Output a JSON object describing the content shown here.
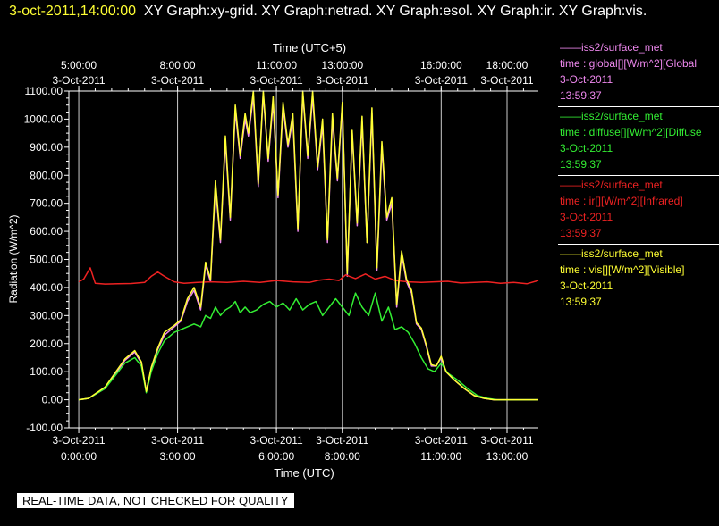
{
  "header": {
    "timestamp": "3-oct-2011,14:00:00",
    "graphs": "XY Graph:xy-grid.  XY Graph:netrad.  XY Graph:esol.  XY Graph:ir.  XY Graph:vis."
  },
  "qc_banner": "REAL-TIME DATA, NOT CHECKED FOR QUALITY",
  "legend": [
    {
      "source": "——iss2/surface_met",
      "variable": "time : global[][W/m^2][Global",
      "date": "3-Oct-2011",
      "time": "13:59:37",
      "color": "#ee88ee"
    },
    {
      "source": "——iss2/surface_met",
      "variable": "time : diffuse[][W/m^2][Diffuse",
      "date": "3-Oct-2011",
      "time": "13:59:37",
      "color": "#33ee33"
    },
    {
      "source": "——iss2/surface_met",
      "variable": "time : ir[][W/m^2][Infrared]",
      "date": "3-Oct-2011",
      "time": "13:59:37",
      "color": "#ee2222"
    },
    {
      "source": "——iss2/surface_met",
      "variable": "time : vis[][W/m^2][Visible]",
      "date": "3-Oct-2011",
      "time": "13:59:37",
      "color": "#ffff33"
    }
  ],
  "chart_data": {
    "type": "line",
    "title": "",
    "xlabel": "Time (UTC)",
    "xlabel_top": "Time (UTC+5)",
    "ylabel": "Radiation (W/m^2)",
    "xlim": [
      -0.3,
      13.95
    ],
    "ylim": [
      -100,
      1100
    ],
    "grid": true,
    "x_unit": "hours since 3-Oct-2011 0:00 UTC",
    "yticks": [
      "-100.00",
      "0.00",
      "100.00",
      "200.00",
      "300.00",
      "400.00",
      "500.00",
      "600.00",
      "700.00",
      "800.00",
      "900.00",
      "1000.00",
      "1100.00"
    ],
    "xticks_bottom": [
      {
        "x": 0,
        "date": "3-Oct-2011",
        "time": "0:00:00"
      },
      {
        "x": 3,
        "date": "3-Oct-2011",
        "time": "3:00:00"
      },
      {
        "x": 6,
        "date": "3-Oct-2011",
        "time": "6:00:00"
      },
      {
        "x": 8,
        "date": "3-Oct-2011",
        "time": "8:00:00"
      },
      {
        "x": 11,
        "date": "3-Oct-2011",
        "time": "11:00:00"
      },
      {
        "x": 13,
        "date": "3-Oct-2011",
        "time": "13:00:00"
      }
    ],
    "xticks_top": [
      {
        "x": 0,
        "time": "5:00:00",
        "date": "3-Oct-2011"
      },
      {
        "x": 3,
        "time": "8:00:00",
        "date": "3-Oct-2011"
      },
      {
        "x": 6,
        "time": "11:00:00",
        "date": "3-Oct-2011"
      },
      {
        "x": 8,
        "time": "13:00:00",
        "date": "3-Oct-2011"
      },
      {
        "x": 11,
        "time": "16:00:00",
        "date": "3-Oct-2011"
      },
      {
        "x": 13,
        "time": "18:00:00",
        "date": "3-Oct-2011"
      }
    ],
    "series": [
      {
        "name": "global",
        "color": "#ee88ee",
        "x": [
          0,
          0.3,
          0.8,
          1.1,
          1.4,
          1.7,
          1.9,
          2.05,
          2.2,
          2.4,
          2.6,
          2.9,
          3.1,
          3.3,
          3.5,
          3.7,
          3.85,
          4.0,
          4.15,
          4.3,
          4.45,
          4.6,
          4.75,
          4.9,
          5.05,
          5.15,
          5.3,
          5.45,
          5.6,
          5.75,
          5.9,
          6.05,
          6.2,
          6.35,
          6.5,
          6.65,
          6.8,
          6.95,
          7.1,
          7.25,
          7.4,
          7.55,
          7.7,
          7.85,
          8.0,
          8.15,
          8.3,
          8.45,
          8.6,
          8.75,
          8.9,
          9.05,
          9.2,
          9.35,
          9.5,
          9.65,
          9.8,
          9.95,
          10.1,
          10.25,
          10.4,
          10.55,
          10.7,
          10.85,
          11.0,
          11.15,
          11.4,
          11.7,
          12.0,
          12.3,
          12.6,
          12.85,
          13.0,
          13.95
        ],
        "y": [
          0,
          5,
          40,
          90,
          140,
          170,
          130,
          30,
          110,
          180,
          230,
          260,
          280,
          350,
          390,
          320,
          480,
          420,
          760,
          560,
          920,
          640,
          1030,
          860,
          1000,
          940,
          1080,
          760,
          1090,
          850,
          1060,
          720,
          1040,
          900,
          1000,
          600,
          1090,
          860,
          1080,
          820,
          980,
          560,
          1000,
          780,
          1050,
          440,
          950,
          620,
          990,
          560,
          1020,
          460,
          900,
          640,
          700,
          330,
          520,
          420,
          380,
          270,
          250,
          190,
          120,
          120,
          150,
          100,
          70,
          40,
          15,
          5,
          0,
          0,
          0,
          0
        ]
      },
      {
        "name": "diffuse",
        "color": "#33ee33",
        "x": [
          0,
          0.3,
          0.8,
          1.1,
          1.4,
          1.7,
          1.9,
          2.05,
          2.2,
          2.4,
          2.6,
          2.9,
          3.1,
          3.3,
          3.5,
          3.7,
          3.85,
          4.0,
          4.15,
          4.3,
          4.45,
          4.6,
          4.75,
          4.9,
          5.05,
          5.2,
          5.4,
          5.6,
          5.8,
          6.0,
          6.2,
          6.4,
          6.6,
          6.8,
          7.0,
          7.2,
          7.4,
          7.6,
          7.8,
          8.0,
          8.2,
          8.4,
          8.6,
          8.8,
          9.0,
          9.2,
          9.4,
          9.6,
          9.8,
          10.0,
          10.2,
          10.4,
          10.6,
          10.8,
          11.0,
          11.2,
          11.5,
          11.8,
          12.1,
          12.4,
          12.7,
          13.0,
          13.95
        ],
        "y": [
          0,
          5,
          40,
          85,
          130,
          150,
          120,
          25,
          100,
          165,
          210,
          240,
          250,
          260,
          270,
          260,
          300,
          290,
          330,
          300,
          320,
          330,
          350,
          310,
          330,
          310,
          320,
          340,
          350,
          330,
          345,
          320,
          360,
          320,
          340,
          350,
          300,
          330,
          360,
          330,
          300,
          380,
          330,
          300,
          380,
          280,
          330,
          250,
          260,
          240,
          200,
          150,
          110,
          100,
          130,
          95,
          70,
          40,
          15,
          5,
          0,
          0,
          0
        ]
      },
      {
        "name": "ir",
        "color": "#ee2222",
        "x": [
          0,
          0.15,
          0.35,
          0.5,
          0.8,
          1.2,
          1.6,
          2.0,
          2.2,
          2.4,
          2.6,
          2.9,
          3.2,
          3.6,
          4.0,
          4.5,
          5.0,
          5.5,
          6.0,
          6.5,
          7.0,
          7.3,
          7.6,
          7.9,
          8.1,
          8.4,
          8.7,
          9.0,
          9.3,
          9.6,
          10.0,
          10.4,
          10.8,
          11.2,
          11.6,
          12.0,
          12.4,
          12.8,
          13.2,
          13.6,
          13.95
        ],
        "y": [
          420,
          430,
          470,
          415,
          412,
          413,
          414,
          418,
          440,
          455,
          440,
          420,
          415,
          418,
          420,
          418,
          422,
          418,
          425,
          420,
          418,
          426,
          430,
          425,
          445,
          432,
          448,
          430,
          440,
          425,
          420,
          418,
          420,
          422,
          416,
          418,
          420,
          415,
          418,
          413,
          425
        ]
      },
      {
        "name": "vis",
        "color": "#ffff33",
        "x": [
          0,
          0.3,
          0.8,
          1.1,
          1.4,
          1.7,
          1.9,
          2.05,
          2.2,
          2.4,
          2.6,
          2.9,
          3.1,
          3.3,
          3.5,
          3.7,
          3.85,
          4.0,
          4.15,
          4.3,
          4.45,
          4.6,
          4.75,
          4.9,
          5.05,
          5.15,
          5.3,
          5.45,
          5.6,
          5.75,
          5.9,
          6.05,
          6.2,
          6.35,
          6.5,
          6.65,
          6.8,
          6.95,
          7.1,
          7.25,
          7.4,
          7.55,
          7.7,
          7.85,
          8.0,
          8.15,
          8.3,
          8.45,
          8.6,
          8.75,
          8.9,
          9.05,
          9.2,
          9.35,
          9.5,
          9.65,
          9.8,
          9.95,
          10.1,
          10.25,
          10.4,
          10.55,
          10.7,
          10.85,
          11.0,
          11.15,
          11.4,
          11.7,
          12.0,
          12.3,
          12.6,
          12.85,
          13.0,
          13.95
        ],
        "y": [
          0,
          5,
          45,
          95,
          145,
          175,
          135,
          30,
          115,
          185,
          240,
          265,
          285,
          360,
          400,
          330,
          490,
          430,
          780,
          570,
          940,
          650,
          1050,
          870,
          1020,
          950,
          1100,
          770,
          1100,
          860,
          1080,
          730,
          1060,
          910,
          1020,
          610,
          1100,
          870,
          1100,
          830,
          1000,
          570,
          1020,
          790,
          1060,
          450,
          960,
          630,
          1010,
          560,
          1040,
          470,
          920,
          650,
          720,
          340,
          530,
          430,
          390,
          275,
          255,
          195,
          125,
          120,
          155,
          100,
          70,
          40,
          15,
          5,
          0,
          0,
          0,
          0
        ]
      }
    ]
  }
}
